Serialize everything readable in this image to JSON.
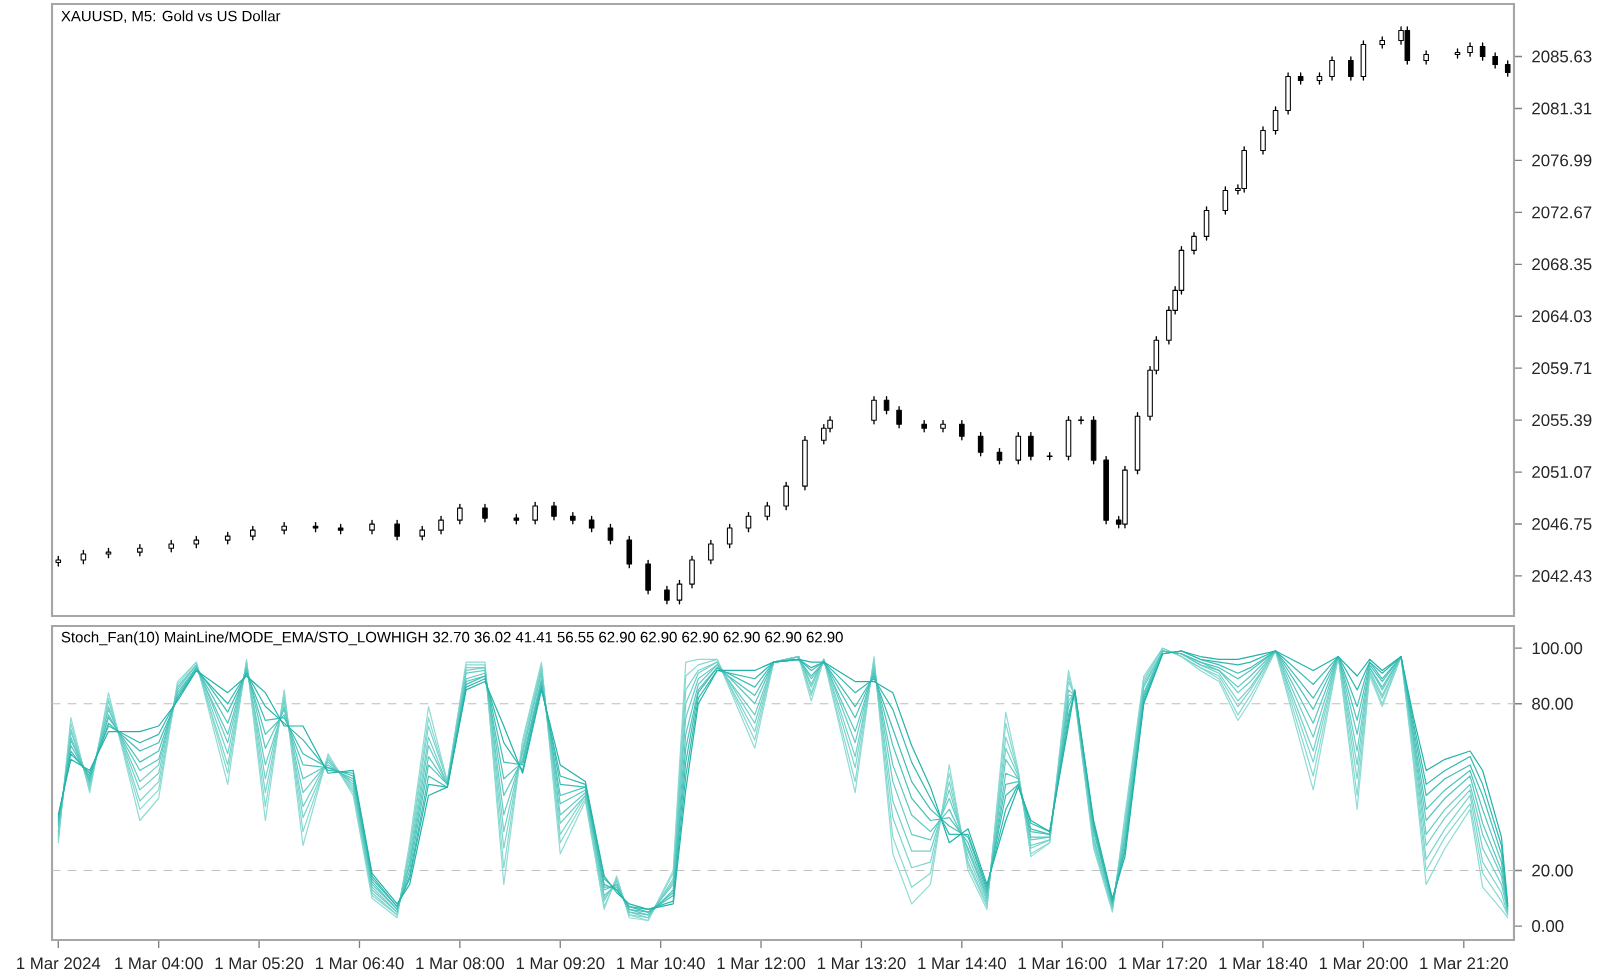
{
  "chart_data": [
    {
      "type": "candlestick",
      "title": "XAUUSD, M5:  Gold vs US Dollar",
      "color": "#000000",
      "tick_labels": "y",
      "xlim": [
        "2024-03-01T02:35",
        "2024-03-01T22:00"
      ],
      "ylim": [
        2039.1,
        2090.0
      ],
      "yticks": [
        2042.43,
        2046.75,
        2051.07,
        2055.39,
        2059.71,
        2064.03,
        2068.35,
        2072.67,
        2076.99,
        2081.31,
        2085.63
      ],
      "x": [
        "2024-03-01T02:40",
        "2024-03-01T03:00",
        "2024-03-01T03:20",
        "2024-03-01T03:45",
        "2024-03-01T04:10",
        "2024-03-01T04:30",
        "2024-03-01T04:55",
        "2024-03-01T05:15",
        "2024-03-01T05:40",
        "2024-03-01T06:05",
        "2024-03-01T06:25",
        "2024-03-01T06:50",
        "2024-03-01T07:10",
        "2024-03-01T07:30",
        "2024-03-01T07:45",
        "2024-03-01T08:00",
        "2024-03-01T08:20",
        "2024-03-01T08:45",
        "2024-03-01T09:00",
        "2024-03-01T09:15",
        "2024-03-01T09:30",
        "2024-03-01T09:45",
        "2024-03-01T10:00",
        "2024-03-01T10:15",
        "2024-03-01T10:30",
        "2024-03-01T10:45",
        "2024-03-01T10:55",
        "2024-03-01T11:05",
        "2024-03-01T11:20",
        "2024-03-01T11:35",
        "2024-03-01T11:50",
        "2024-03-01T12:05",
        "2024-03-01T12:20",
        "2024-03-01T12:35",
        "2024-03-01T12:50",
        "2024-03-01T12:55",
        "2024-03-01T13:30",
        "2024-03-01T13:40",
        "2024-03-01T13:50",
        "2024-03-01T14:10",
        "2024-03-01T14:25",
        "2024-03-01T14:40",
        "2024-03-01T14:55",
        "2024-03-01T15:10",
        "2024-03-01T15:25",
        "2024-03-01T15:35",
        "2024-03-01T15:50",
        "2024-03-01T16:05",
        "2024-03-01T16:15",
        "2024-03-01T16:25",
        "2024-03-01T16:35",
        "2024-03-01T16:45",
        "2024-03-01T16:50",
        "2024-03-01T17:00",
        "2024-03-01T17:10",
        "2024-03-01T17:15",
        "2024-03-01T17:25",
        "2024-03-01T17:30",
        "2024-03-01T17:35",
        "2024-03-01T17:45",
        "2024-03-01T17:55",
        "2024-03-01T18:10",
        "2024-03-01T18:20",
        "2024-03-01T18:25",
        "2024-03-01T18:40",
        "2024-03-01T18:50",
        "2024-03-01T19:00",
        "2024-03-01T19:10",
        "2024-03-01T19:25",
        "2024-03-01T19:35",
        "2024-03-01T19:50",
        "2024-03-01T20:00",
        "2024-03-01T20:15",
        "2024-03-01T20:30",
        "2024-03-01T20:35",
        "2024-03-01T20:50",
        "2024-03-01T21:15",
        "2024-03-01T21:25",
        "2024-03-01T21:35",
        "2024-03-01T21:45",
        "2024-03-01T21:55"
      ],
      "ohlc": [
        [
          2043.55,
          2044.05,
          2043.25,
          2043.75
        ],
        [
          2043.75,
          2044.55,
          2043.45,
          2044.25
        ],
        [
          2044.25,
          2044.71,
          2043.95,
          2044.41
        ],
        [
          2044.41,
          2045.04,
          2044.11,
          2044.74
        ],
        [
          2044.74,
          2045.38,
          2044.44,
          2045.08
        ],
        [
          2045.08,
          2045.71,
          2044.78,
          2045.41
        ],
        [
          2045.41,
          2046.04,
          2045.11,
          2045.74
        ],
        [
          2045.74,
          2046.54,
          2045.44,
          2046.24
        ],
        [
          2046.24,
          2046.87,
          2045.94,
          2046.57
        ],
        [
          2046.57,
          2046.87,
          2046.11,
          2046.41
        ],
        [
          2046.41,
          2046.71,
          2045.94,
          2046.24
        ],
        [
          2046.24,
          2047.04,
          2045.94,
          2046.74
        ],
        [
          2046.74,
          2047.04,
          2045.44,
          2045.74
        ],
        [
          2045.74,
          2046.54,
          2045.44,
          2046.24
        ],
        [
          2046.24,
          2047.37,
          2045.94,
          2047.07
        ],
        [
          2047.07,
          2048.37,
          2046.77,
          2048.07
        ],
        [
          2048.07,
          2048.37,
          2046.94,
          2047.24
        ],
        [
          2047.24,
          2047.54,
          2046.77,
          2047.07
        ],
        [
          2047.07,
          2048.54,
          2046.77,
          2048.24
        ],
        [
          2048.24,
          2048.54,
          2047.1,
          2047.4
        ],
        [
          2047.4,
          2047.7,
          2046.77,
          2047.07
        ],
        [
          2047.07,
          2047.37,
          2046.11,
          2046.41
        ],
        [
          2046.41,
          2046.71,
          2045.11,
          2045.41
        ],
        [
          2045.41,
          2045.71,
          2043.12,
          2043.42
        ],
        [
          2043.42,
          2043.72,
          2040.95,
          2041.25
        ],
        [
          2041.25,
          2041.55,
          2040.12,
          2040.42
        ],
        [
          2040.42,
          2042.05,
          2040.12,
          2041.75
        ],
        [
          2041.75,
          2044.05,
          2041.45,
          2043.75
        ],
        [
          2043.75,
          2045.38,
          2043.45,
          2045.08
        ],
        [
          2045.08,
          2046.71,
          2044.78,
          2046.41
        ],
        [
          2046.41,
          2047.7,
          2046.11,
          2047.4
        ],
        [
          2047.4,
          2048.54,
          2047.1,
          2048.24
        ],
        [
          2048.24,
          2050.2,
          2047.94,
          2049.9
        ],
        [
          2049.9,
          2054.02,
          2049.6,
          2053.72
        ],
        [
          2053.72,
          2055.02,
          2053.42,
          2054.72
        ],
        [
          2054.72,
          2055.68,
          2054.42,
          2055.38
        ],
        [
          2055.38,
          2057.34,
          2055.08,
          2057.04
        ],
        [
          2057.04,
          2057.34,
          2055.91,
          2056.21
        ],
        [
          2056.21,
          2056.51,
          2054.75,
          2055.05
        ],
        [
          2055.05,
          2055.35,
          2054.42,
          2054.72
        ],
        [
          2054.72,
          2055.35,
          2054.42,
          2055.05
        ],
        [
          2055.05,
          2055.35,
          2053.75,
          2054.05
        ],
        [
          2054.05,
          2054.35,
          2052.42,
          2052.72
        ],
        [
          2052.72,
          2053.02,
          2051.76,
          2052.06
        ],
        [
          2052.06,
          2054.35,
          2051.76,
          2054.05
        ],
        [
          2054.05,
          2054.35,
          2052.09,
          2052.39
        ],
        [
          2052.39,
          2052.69,
          2052.09,
          2052.39
        ],
        [
          2052.39,
          2055.68,
          2052.09,
          2055.38
        ],
        [
          2055.38,
          2055.68,
          2055.08,
          2055.38
        ],
        [
          2055.38,
          2055.68,
          2051.76,
          2052.06
        ],
        [
          2052.06,
          2052.36,
          2046.77,
          2047.07
        ],
        [
          2047.07,
          2047.37,
          2046.44,
          2046.74
        ],
        [
          2046.74,
          2051.53,
          2046.44,
          2051.23
        ],
        [
          2051.23,
          2056.01,
          2050.93,
          2055.71
        ],
        [
          2055.71,
          2059.84,
          2055.41,
          2059.54
        ],
        [
          2059.54,
          2062.33,
          2059.24,
          2062.03
        ],
        [
          2062.03,
          2064.82,
          2061.73,
          2064.52
        ],
        [
          2064.52,
          2066.48,
          2064.22,
          2066.18
        ],
        [
          2066.18,
          2069.81,
          2065.88,
          2069.51
        ],
        [
          2069.51,
          2070.97,
          2069.21,
          2070.67
        ],
        [
          2070.67,
          2073.13,
          2070.37,
          2072.83
        ],
        [
          2072.83,
          2074.79,
          2072.53,
          2074.49
        ],
        [
          2074.49,
          2074.96,
          2074.19,
          2074.66
        ],
        [
          2074.66,
          2078.12,
          2074.36,
          2077.82
        ],
        [
          2077.82,
          2079.78,
          2077.52,
          2079.48
        ],
        [
          2079.48,
          2081.44,
          2079.18,
          2081.14
        ],
        [
          2081.14,
          2084.27,
          2080.84,
          2083.97
        ],
        [
          2083.97,
          2084.27,
          2083.34,
          2083.64
        ],
        [
          2083.64,
          2084.27,
          2083.34,
          2083.97
        ],
        [
          2083.97,
          2085.6,
          2083.67,
          2085.3
        ],
        [
          2085.3,
          2085.6,
          2083.67,
          2083.97
        ],
        [
          2083.97,
          2086.93,
          2083.67,
          2086.63
        ],
        [
          2086.63,
          2087.26,
          2086.33,
          2086.96
        ],
        [
          2086.96,
          2088.09,
          2086.66,
          2087.79
        ],
        [
          2087.79,
          2088.09,
          2085.0,
          2085.3
        ],
        [
          2085.3,
          2086.1,
          2085.0,
          2085.8
        ],
        [
          2085.8,
          2086.26,
          2085.5,
          2085.96
        ],
        [
          2085.96,
          2086.76,
          2085.66,
          2086.46
        ],
        [
          2086.46,
          2086.76,
          2085.33,
          2085.63
        ],
        [
          2085.63,
          2085.93,
          2084.67,
          2084.97
        ],
        [
          2084.97,
          2085.27,
          2084.0,
          2084.3
        ]
      ]
    },
    {
      "type": "line",
      "title": "Stoch_Fan(10) MainLine/MODE_EMA/STO_LOWHIGH 32.70 36.02 41.41 56.55 62.90 62.90 62.90 62.90 62.90 62.90",
      "line_style": "solid",
      "xlim": [
        "2024-03-01T02:35",
        "2024-03-01T22:00"
      ],
      "ylim": [
        -5,
        108
      ],
      "xticks": [
        {
          "value": "2024-03-01T02:40",
          "label": "1 Mar 2024"
        },
        {
          "value": "2024-03-01T04:00",
          "label": "1 Mar 04:00"
        },
        {
          "value": "2024-03-01T05:20",
          "label": "1 Mar 05:20"
        },
        {
          "value": "2024-03-01T06:40",
          "label": "1 Mar 06:40"
        },
        {
          "value": "2024-03-01T08:00",
          "label": "1 Mar 08:00"
        },
        {
          "value": "2024-03-01T09:20",
          "label": "1 Mar 09:20"
        },
        {
          "value": "2024-03-01T10:40",
          "label": "1 Mar 10:40"
        },
        {
          "value": "2024-03-01T12:00",
          "label": "1 Mar 12:00"
        },
        {
          "value": "2024-03-01T13:20",
          "label": "1 Mar 13:20"
        },
        {
          "value": "2024-03-01T14:40",
          "label": "1 Mar 14:40"
        },
        {
          "value": "2024-03-01T16:00",
          "label": "1 Mar 16:00"
        },
        {
          "value": "2024-03-01T17:20",
          "label": "1 Mar 17:20"
        },
        {
          "value": "2024-03-01T18:40",
          "label": "1 Mar 18:40"
        },
        {
          "value": "2024-03-01T20:00",
          "label": "1 Mar 20:00"
        },
        {
          "value": "2024-03-01T21:20",
          "label": "1 Mar 21:20"
        }
      ],
      "yticks": [
        {
          "value": 0,
          "label": "0.00"
        },
        {
          "value": 20,
          "label": "20.00"
        },
        {
          "value": 80,
          "label": "80.00"
        },
        {
          "value": 100,
          "label": "100.00"
        }
      ],
      "ref_lines": [
        {
          "axis": "y",
          "value": 20,
          "line_style": "dashed",
          "color": "#c0c0c0"
        },
        {
          "axis": "y",
          "value": 80,
          "line_style": "dashed",
          "color": "#c0c0c0"
        }
      ],
      "x": [
        "2024-03-01T02:40",
        "2024-03-01T02:50",
        "2024-03-01T03:05",
        "2024-03-01T03:20",
        "2024-03-01T03:45",
        "2024-03-01T04:00",
        "2024-03-01T04:15",
        "2024-03-01T04:30",
        "2024-03-01T04:55",
        "2024-03-01T05:10",
        "2024-03-01T05:25",
        "2024-03-01T05:40",
        "2024-03-01T05:55",
        "2024-03-01T06:15",
        "2024-03-01T06:35",
        "2024-03-01T06:50",
        "2024-03-01T07:10",
        "2024-03-01T07:20",
        "2024-03-01T07:35",
        "2024-03-01T07:50",
        "2024-03-01T08:05",
        "2024-03-01T08:20",
        "2024-03-01T08:35",
        "2024-03-01T08:50",
        "2024-03-01T09:05",
        "2024-03-01T09:20",
        "2024-03-01T09:40",
        "2024-03-01T09:55",
        "2024-03-01T10:05",
        "2024-03-01T10:15",
        "2024-03-01T10:30",
        "2024-03-01T10:50",
        "2024-03-01T11:00",
        "2024-03-01T11:10",
        "2024-03-01T11:25",
        "2024-03-01T11:55",
        "2024-03-01T12:10",
        "2024-03-01T12:30",
        "2024-03-01T12:40",
        "2024-03-01T12:50",
        "2024-03-01T13:15",
        "2024-03-01T13:30",
        "2024-03-01T13:45",
        "2024-03-01T14:00",
        "2024-03-01T14:15",
        "2024-03-01T14:30",
        "2024-03-01T14:45",
        "2024-03-01T15:00",
        "2024-03-01T15:15",
        "2024-03-01T15:25",
        "2024-03-01T15:35",
        "2024-03-01T15:50",
        "2024-03-01T16:05",
        "2024-03-01T16:10",
        "2024-03-01T16:25",
        "2024-03-01T16:40",
        "2024-03-01T16:50",
        "2024-03-01T17:05",
        "2024-03-01T17:20",
        "2024-03-01T17:35",
        "2024-03-01T17:50",
        "2024-03-01T18:05",
        "2024-03-01T18:20",
        "2024-03-01T18:30",
        "2024-03-01T18:50",
        "2024-03-01T19:20",
        "2024-03-01T19:40",
        "2024-03-01T19:55",
        "2024-03-01T20:05",
        "2024-03-01T20:15",
        "2024-03-01T20:30",
        "2024-03-01T20:40",
        "2024-03-01T20:50",
        "2024-03-01T21:05",
        "2024-03-01T21:25",
        "2024-03-01T21:35",
        "2024-03-01T21:50",
        "2024-03-01T21:55"
      ],
      "series": [
        {
          "color": "#8fdcd4",
          "values": [
            30,
            75,
            48,
            84,
            38,
            46,
            88,
            95,
            51,
            96,
            38,
            85,
            29,
            62,
            47,
            10,
            3,
            30,
            79,
            52,
            95,
            95,
            15,
            67,
            95,
            26,
            45,
            6,
            18,
            3,
            2,
            20,
            95,
            96,
            96,
            64,
            95,
            97,
            81,
            96,
            48,
            97,
            26,
            8,
            15,
            58,
            20,
            6,
            77,
            56,
            25,
            30,
            92,
            82,
            28,
            5,
            40,
            90,
            100,
            97,
            92,
            88,
            74,
            81,
            99,
            49,
            97,
            42,
            90,
            79,
            97,
            58,
            15,
            28,
            42,
            14,
            6,
            3
          ]
        },
        {
          "color": "#86d9d1",
          "values": [
            31,
            73,
            49,
            82,
            42,
            49,
            87,
            95,
            55,
            95,
            43,
            84,
            34,
            61,
            48,
            11,
            4,
            28,
            75,
            52,
            94,
            94,
            21,
            66,
            94,
            30,
            46,
            7,
            17,
            4,
            2,
            19,
            90,
            94,
            96,
            67,
            95,
            97,
            83,
            96,
            52,
            96,
            32,
            14,
            19,
            55,
            22,
            7,
            73,
            55,
            26,
            30,
            90,
            82,
            29,
            6,
            38,
            89,
            100,
            97,
            93,
            89,
            76,
            83,
            99,
            54,
            97,
            47,
            91,
            80,
            97,
            60,
            20,
            32,
            44,
            19,
            9,
            4
          ]
        },
        {
          "color": "#7cd5cd",
          "values": [
            32,
            71,
            50,
            81,
            45,
            52,
            86,
            94,
            58,
            95,
            48,
            82,
            39,
            60,
            49,
            12,
            4,
            27,
            72,
            52,
            93,
            93,
            28,
            64,
            93,
            33,
            47,
            9,
            17,
            4,
            3,
            17,
            85,
            92,
            95,
            70,
            95,
            97,
            84,
            96,
            57,
            95,
            39,
            21,
            23,
            52,
            23,
            8,
            68,
            55,
            28,
            31,
            88,
            83,
            30,
            6,
            37,
            88,
            100,
            97,
            93,
            90,
            79,
            85,
            99,
            59,
            97,
            53,
            91,
            82,
            97,
            62,
            24,
            35,
            47,
            23,
            12,
            4
          ]
        },
        {
          "color": "#72d1c9",
          "values": [
            33,
            70,
            51,
            79,
            49,
            55,
            86,
            94,
            62,
            94,
            53,
            81,
            43,
            60,
            50,
            13,
            5,
            25,
            68,
            51,
            92,
            93,
            34,
            63,
            92,
            37,
            47,
            10,
            16,
            5,
            3,
            16,
            80,
            91,
            95,
            73,
            95,
            97,
            86,
            96,
            61,
            94,
            45,
            27,
            27,
            49,
            25,
            9,
            64,
            54,
            29,
            31,
            85,
            83,
            31,
            7,
            35,
            87,
            99,
            98,
            94,
            91,
            81,
            86,
            99,
            63,
            97,
            58,
            92,
            83,
            97,
            64,
            29,
            39,
            49,
            28,
            15,
            5
          ]
        },
        {
          "color": "#66cdc4",
          "values": [
            34,
            68,
            52,
            78,
            52,
            58,
            85,
            94,
            66,
            93,
            58,
            79,
            48,
            59,
            51,
            14,
            5,
            23,
            65,
            51,
            91,
            92,
            40,
            62,
            91,
            40,
            48,
            11,
            15,
            5,
            4,
            15,
            75,
            89,
            94,
            76,
            95,
            97,
            87,
            96,
            66,
            93,
            52,
            33,
            31,
            46,
            27,
            10,
            60,
            53,
            31,
            32,
            83,
            83,
            32,
            7,
            33,
            86,
            99,
            98,
            94,
            92,
            84,
            88,
            99,
            68,
            97,
            63,
            93,
            85,
            97,
            66,
            33,
            42,
            51,
            33,
            18,
            5
          ]
        },
        {
          "color": "#5ac8bf",
          "values": [
            36,
            67,
            52,
            76,
            56,
            60,
            84,
            93,
            69,
            93,
            64,
            78,
            53,
            58,
            52,
            15,
            6,
            22,
            61,
            51,
            89,
            91,
            47,
            60,
            89,
            44,
            49,
            13,
            15,
            6,
            4,
            13,
            69,
            87,
            94,
            80,
            95,
            96,
            89,
            95,
            70,
            92,
            58,
            40,
            34,
            42,
            28,
            11,
            55,
            53,
            32,
            32,
            81,
            84,
            34,
            8,
            32,
            84,
            99,
            98,
            95,
            92,
            86,
            90,
            99,
            73,
            97,
            69,
            93,
            86,
            97,
            67,
            38,
            46,
            54,
            37,
            20,
            6
          ]
        },
        {
          "color": "#4ec3ba",
          "values": [
            37,
            65,
            53,
            75,
            59,
            63,
            83,
            93,
            73,
            92,
            69,
            76,
            58,
            57,
            53,
            16,
            6,
            20,
            58,
            51,
            88,
            90,
            53,
            59,
            88,
            47,
            50,
            14,
            14,
            6,
            5,
            12,
            64,
            85,
            93,
            83,
            95,
            96,
            90,
            95,
            75,
            91,
            65,
            46,
            38,
            39,
            30,
            12,
            51,
            52,
            34,
            33,
            79,
            84,
            35,
            8,
            30,
            83,
            99,
            98,
            95,
            93,
            89,
            92,
            99,
            78,
            97,
            74,
            94,
            88,
            97,
            69,
            42,
            49,
            56,
            42,
            23,
            6
          ]
        },
        {
          "color": "#40beb4",
          "values": [
            38,
            63,
            54,
            73,
            63,
            66,
            82,
            93,
            77,
            91,
            74,
            75,
            62,
            57,
            54,
            17,
            7,
            18,
            54,
            50,
            87,
            90,
            59,
            58,
            87,
            51,
            50,
            15,
            13,
            7,
            5,
            11,
            59,
            84,
            93,
            86,
            95,
            96,
            92,
            95,
            79,
            90,
            71,
            52,
            42,
            36,
            32,
            13,
            47,
            51,
            35,
            33,
            76,
            84,
            36,
            9,
            28,
            82,
            98,
            99,
            96,
            94,
            91,
            93,
            99,
            82,
            97,
            79,
            95,
            89,
            97,
            71,
            47,
            53,
            58,
            47,
            26,
            7
          ]
        },
        {
          "color": "#32b9af",
          "values": [
            39,
            62,
            55,
            72,
            66,
            69,
            82,
            92,
            80,
            91,
            79,
            73,
            67,
            56,
            55,
            18,
            7,
            17,
            51,
            50,
            86,
            89,
            66,
            56,
            86,
            54,
            51,
            17,
            13,
            7,
            6,
            9,
            54,
            82,
            92,
            89,
            95,
            96,
            93,
            95,
            84,
            89,
            78,
            59,
            46,
            33,
            33,
            14,
            42,
            51,
            37,
            34,
            74,
            85,
            37,
            9,
            27,
            81,
            98,
            99,
            96,
            95,
            94,
            95,
            99,
            87,
            97,
            85,
            95,
            91,
            97,
            73,
            51,
            56,
            61,
            51,
            29,
            7
          ]
        },
        {
          "color": "#22b3a8",
          "values": [
            40,
            60,
            56,
            70,
            70,
            72,
            81,
            92,
            84,
            90,
            84,
            72,
            72,
            55,
            56,
            19,
            8,
            15,
            47,
            50,
            85,
            88,
            72,
            55,
            85,
            58,
            52,
            18,
            12,
            8,
            6,
            8,
            49,
            80,
            92,
            92,
            95,
            96,
            95,
            95,
            88,
            88,
            84,
            65,
            50,
            30,
            35,
            15,
            38,
            50,
            38,
            34,
            72,
            85,
            38,
            10,
            25,
            80,
            98,
            99,
            97,
            96,
            96,
            97,
            99,
            92,
            97,
            90,
            96,
            92,
            97,
            75,
            56,
            60,
            63,
            56,
            32,
            8
          ]
        }
      ]
    }
  ]
}
